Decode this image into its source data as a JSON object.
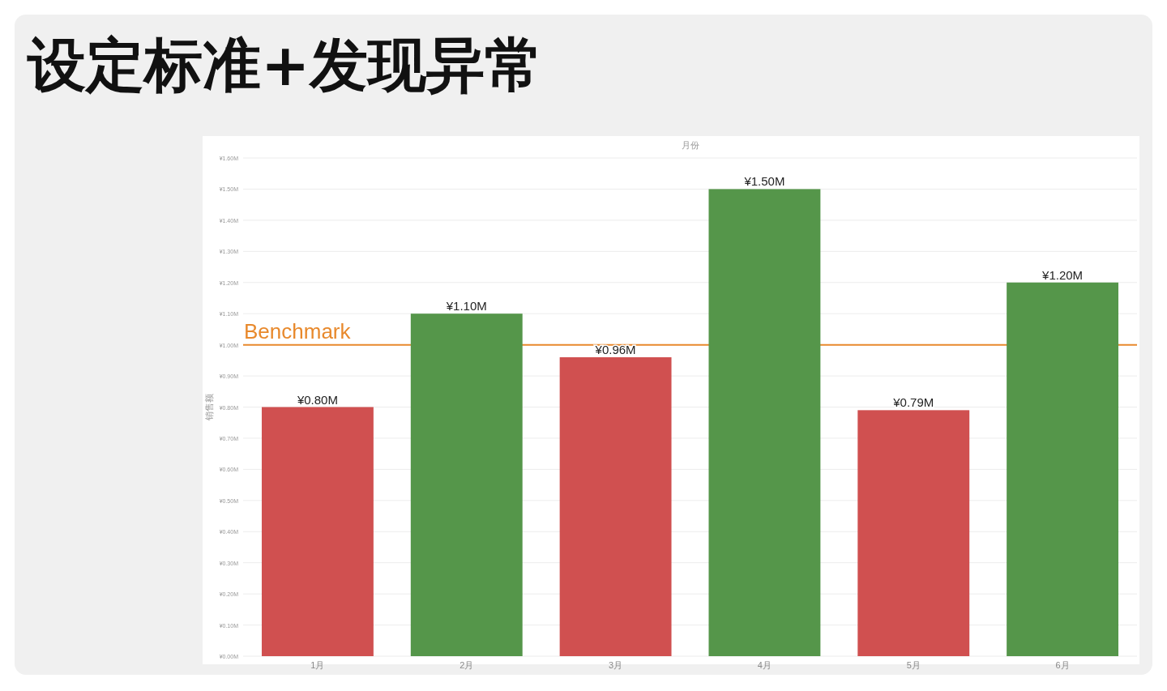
{
  "chart_data": {
    "type": "bar",
    "title": "设定标准+发现异常",
    "xlabel": "月份",
    "ylabel": "销售额",
    "categories": [
      "1月",
      "2月",
      "3月",
      "4月",
      "5月",
      "6月"
    ],
    "values": [
      0.8,
      1.1,
      0.96,
      1.5,
      0.79,
      1.2
    ],
    "colors": [
      "#d05050",
      "#55964a",
      "#d05050",
      "#55964a",
      "#d05050",
      "#55964a"
    ],
    "value_labels": [
      "¥0.80M",
      "¥1.10M",
      "¥0.96M",
      "¥1.50M",
      "¥0.79M",
      "¥1.20M"
    ],
    "ylim": [
      0,
      1.6
    ],
    "yticks": [
      {
        "value": 0,
        "label": "¥0.00M"
      },
      {
        "value": 0.1,
        "label": "¥0.10M"
      },
      {
        "value": 0.2,
        "label": "¥0.20M"
      },
      {
        "value": 0.3,
        "label": "¥0.30M"
      },
      {
        "value": 0.4,
        "label": "¥0.40M"
      },
      {
        "value": 0.5,
        "label": "¥0.50M"
      },
      {
        "value": 0.6,
        "label": "¥0.60M"
      },
      {
        "value": 0.7,
        "label": "¥0.70M"
      },
      {
        "value": 0.8,
        "label": "¥0.80M"
      },
      {
        "value": 0.9,
        "label": "¥0.90M"
      },
      {
        "value": 1.0,
        "label": "¥1.00M"
      },
      {
        "value": 1.1,
        "label": "¥1.10M"
      },
      {
        "value": 1.2,
        "label": "¥1.20M"
      },
      {
        "value": 1.3,
        "label": "¥1.30M"
      },
      {
        "value": 1.4,
        "label": "¥1.40M"
      },
      {
        "value": 1.5,
        "label": "¥1.50M"
      },
      {
        "value": 1.6,
        "label": "¥1.60M"
      }
    ],
    "grid": "y",
    "ref_lines": [
      {
        "axis": "y",
        "value": 1.0,
        "label": "Benchmark",
        "color": "#e8892c"
      }
    ]
  }
}
